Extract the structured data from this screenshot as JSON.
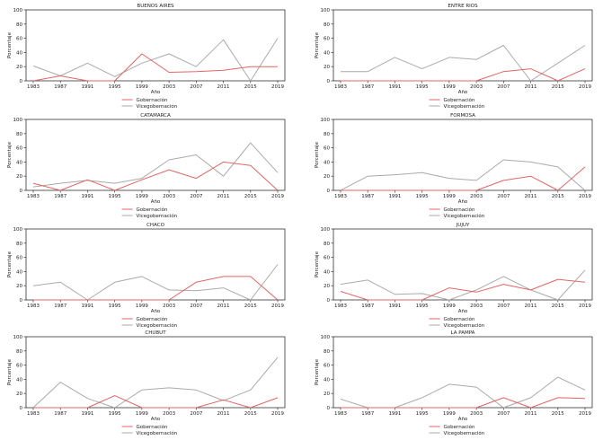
{
  "colors": {
    "gobernacion": "#e06666",
    "vicegobernacion": "#aaaaaa",
    "axis": "#333333"
  },
  "chart_data": [
    {
      "type": "line",
      "title": "BUENOS AIRES",
      "xlabel": "Año",
      "ylabel": "Porcentaje",
      "ylim": [
        0,
        100
      ],
      "yticks": [
        0,
        20,
        40,
        60,
        80,
        100
      ],
      "categories": [
        "1983",
        "1987",
        "1991",
        "1995",
        "1999",
        "2003",
        "2007",
        "2011",
        "2015",
        "2019"
      ],
      "legend_position": "bottom-center",
      "series": [
        {
          "name": "Gobernación",
          "values": [
            0,
            7,
            0,
            0,
            38,
            12,
            13,
            15,
            20,
            20
          ]
        },
        {
          "name": "Vicegobernación",
          "values": [
            21,
            7,
            25,
            6,
            25,
            38,
            20,
            58,
            0,
            60
          ]
        }
      ]
    },
    {
      "type": "line",
      "title": "ENTRE RIOS",
      "xlabel": "Año",
      "ylabel": "Porcentaje",
      "ylim": [
        0,
        100
      ],
      "yticks": [
        0,
        20,
        40,
        60,
        80,
        100
      ],
      "categories": [
        "1983",
        "1987",
        "1991",
        "1995",
        "1999",
        "2003",
        "2007",
        "2011",
        "2015",
        "2019"
      ],
      "legend_position": "bottom-center",
      "series": [
        {
          "name": "Gobernación",
          "values": [
            0,
            0,
            0,
            0,
            0,
            0,
            13,
            17,
            0,
            17
          ]
        },
        {
          "name": "Vicegobernación",
          "values": [
            13,
            13,
            33,
            17,
            33,
            30,
            50,
            0,
            25,
            50
          ]
        }
      ]
    },
    {
      "type": "line",
      "title": "CATAMARCA",
      "xlabel": "Año",
      "ylabel": "Porcentaje",
      "ylim": [
        0,
        100
      ],
      "yticks": [
        0,
        20,
        40,
        60,
        80,
        100
      ],
      "categories": [
        "1983",
        "1987",
        "1991",
        "1995",
        "1999",
        "2003",
        "2007",
        "2011",
        "2015",
        "2019"
      ],
      "legend_position": "bottom-center",
      "series": [
        {
          "name": "Gobernación",
          "values": [
            10,
            0,
            15,
            0,
            15,
            29,
            17,
            40,
            35,
            0
          ]
        },
        {
          "name": "Vicegobernación",
          "values": [
            5,
            10,
            14,
            10,
            17,
            43,
            50,
            20,
            67,
            25
          ]
        }
      ]
    },
    {
      "type": "line",
      "title": "FORMOSA",
      "xlabel": "Año",
      "ylabel": "Porcentaje",
      "ylim": [
        0,
        100
      ],
      "yticks": [
        0,
        20,
        40,
        60,
        80,
        100
      ],
      "categories": [
        "1983",
        "1987",
        "1991",
        "1995",
        "1999",
        "2003",
        "2007",
        "2011",
        "2015",
        "2019"
      ],
      "legend_position": "bottom-center",
      "series": [
        {
          "name": "Gobernación",
          "values": [
            0,
            0,
            0,
            0,
            0,
            0,
            14,
            20,
            0,
            33
          ]
        },
        {
          "name": "Vicegobernación",
          "values": [
            0,
            20,
            22,
            25,
            17,
            14,
            43,
            40,
            33,
            0
          ]
        }
      ]
    },
    {
      "type": "line",
      "title": "CHACO",
      "xlabel": "Año",
      "ylabel": "Porcentaje",
      "ylim": [
        0,
        100
      ],
      "yticks": [
        0,
        20,
        40,
        60,
        80,
        100
      ],
      "categories": [
        "1983",
        "1987",
        "1991",
        "1995",
        "1999",
        "2003",
        "2007",
        "2011",
        "2015",
        "2019"
      ],
      "legend_position": "bottom-center",
      "series": [
        {
          "name": "Gobernación",
          "values": [
            0,
            0,
            0,
            0,
            0,
            0,
            25,
            33,
            33,
            0
          ]
        },
        {
          "name": "Vicegobernación",
          "values": [
            20,
            25,
            0,
            25,
            33,
            14,
            13,
            17,
            0,
            50
          ]
        }
      ]
    },
    {
      "type": "line",
      "title": "JUJUY",
      "xlabel": "Año",
      "ylabel": "Porcentaje",
      "ylim": [
        0,
        100
      ],
      "yticks": [
        0,
        20,
        40,
        60,
        80,
        100
      ],
      "categories": [
        "1983",
        "1987",
        "1991",
        "1995",
        "1999",
        "2003",
        "2007",
        "2011",
        "2015",
        "2019"
      ],
      "legend_position": "bottom-center",
      "series": [
        {
          "name": "Gobernación",
          "values": [
            12,
            0,
            0,
            0,
            17,
            11,
            22,
            14,
            29,
            25
          ]
        },
        {
          "name": "Vicegobernación",
          "values": [
            22,
            28,
            8,
            9,
            0,
            14,
            33,
            14,
            0,
            42
          ]
        }
      ]
    },
    {
      "type": "line",
      "title": "CHUBUT",
      "xlabel": "Año",
      "ylabel": "Porcentaje",
      "ylim": [
        0,
        100
      ],
      "yticks": [
        0,
        20,
        40,
        60,
        80,
        100
      ],
      "categories": [
        "1983",
        "1987",
        "1991",
        "1995",
        "1999",
        "2003",
        "2007",
        "2011",
        "2015",
        "2019"
      ],
      "legend_position": "bottom-center",
      "series": [
        {
          "name": "Gobernación",
          "values": [
            0,
            0,
            0,
            17,
            0,
            0,
            0,
            11,
            0,
            14
          ]
        },
        {
          "name": "Vicegobernación",
          "values": [
            0,
            36,
            13,
            0,
            25,
            28,
            25,
            10,
            25,
            71
          ]
        }
      ]
    },
    {
      "type": "line",
      "title": "LA PAMPA",
      "xlabel": "Año",
      "ylabel": "Porcentaje",
      "ylim": [
        0,
        100
      ],
      "yticks": [
        0,
        20,
        40,
        60,
        80,
        100
      ],
      "categories": [
        "1983",
        "1987",
        "1991",
        "1995",
        "1999",
        "2003",
        "2007",
        "2011",
        "2015",
        "2019"
      ],
      "legend_position": "bottom-center",
      "series": [
        {
          "name": "Gobernación",
          "values": [
            0,
            0,
            0,
            0,
            0,
            0,
            14,
            0,
            14,
            13
          ]
        },
        {
          "name": "Vicegobernación",
          "values": [
            12,
            0,
            0,
            14,
            33,
            29,
            0,
            14,
            43,
            25
          ]
        }
      ]
    }
  ]
}
